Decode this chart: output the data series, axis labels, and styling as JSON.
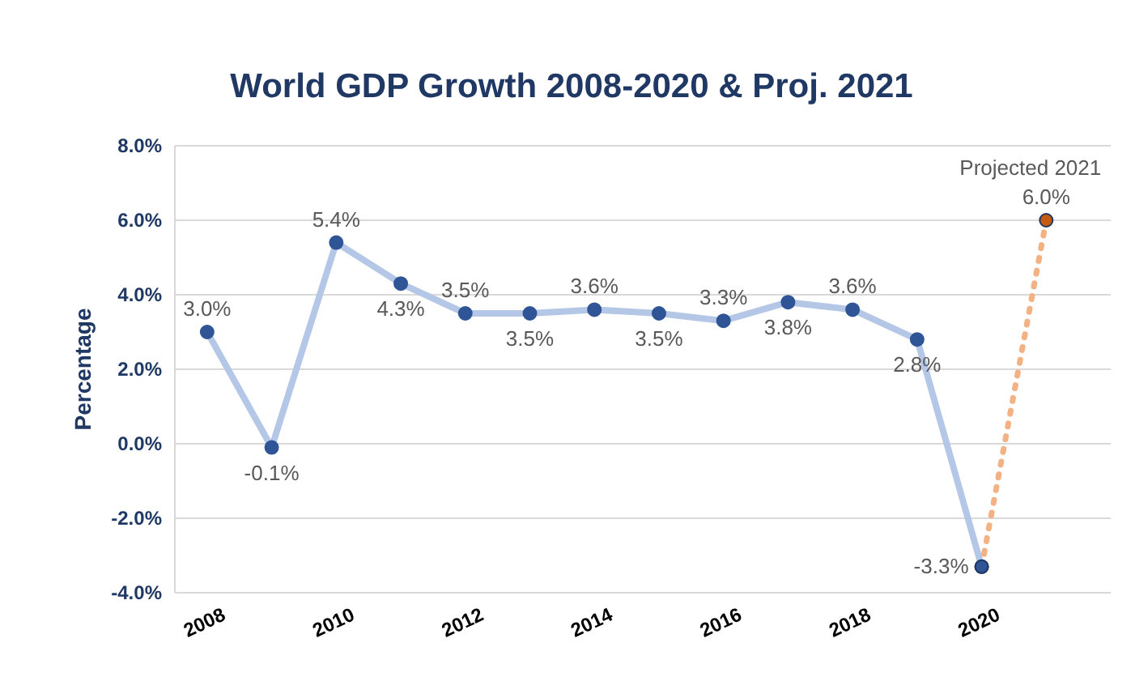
{
  "chart_data": {
    "type": "line",
    "title": "World GDP Growth 2008-2020 & Proj. 2021",
    "ylabel": "Percentage",
    "x": [
      2008,
      2009,
      2010,
      2011,
      2012,
      2013,
      2014,
      2015,
      2016,
      2017,
      2018,
      2019,
      2020
    ],
    "series": [
      {
        "color": "#b4c7e7",
        "colors": [
          "#2f5597",
          "#2f5597",
          "#2f5597",
          "#2f5597",
          "#2f5597",
          "#2f5597",
          "#2f5597",
          "#2f5597",
          "#2f5597",
          "#2f5597",
          "#2f5597",
          "#2f5597",
          "#2f5597"
        ],
        "values": [
          3.0,
          -0.1,
          5.4,
          4.3,
          3.5,
          3.5,
          3.6,
          3.5,
          3.3,
          3.8,
          3.6,
          2.8,
          -3.3
        ],
        "value_labels": [
          "3.0%",
          "-0.1%",
          "5.4%",
          "4.3%",
          "3.5%",
          "3.5%",
          "3.6%",
          "3.5%",
          "3.3%",
          "3.8%",
          "3.6%",
          "2.8%",
          "-3.3%"
        ],
        "line_style": "solid"
      },
      {
        "type": "line",
        "color": "#f4b183",
        "colors": [
          "#2f5597",
          "#c55a11"
        ],
        "x": [
          2020,
          2021
        ],
        "values": [
          -3.3,
          6.0
        ],
        "value_labels": [
          null,
          "6.0%"
        ],
        "line_style": "dotted"
      }
    ],
    "annotations": [
      {
        "text": "Projected 2021",
        "x": 2021,
        "y": 6.0
      }
    ],
    "xlim": [
      2007.5,
      2022
    ],
    "xticks": [
      2008,
      2010,
      2012,
      2014,
      2016,
      2018,
      2020
    ],
    "ylim": [
      -4,
      8
    ],
    "yticks": [
      {
        "value": -4,
        "label": "-4.0%"
      },
      {
        "value": -2,
        "label": "-2.0%"
      },
      {
        "value": 0,
        "label": "0.0%"
      },
      {
        "value": 2,
        "label": "2.0%"
      },
      {
        "value": 4,
        "label": "4.0%"
      },
      {
        "value": 6,
        "label": "6.0%"
      },
      {
        "value": 8,
        "label": "8.0%"
      }
    ],
    "grid": "y",
    "marker": "circle"
  }
}
